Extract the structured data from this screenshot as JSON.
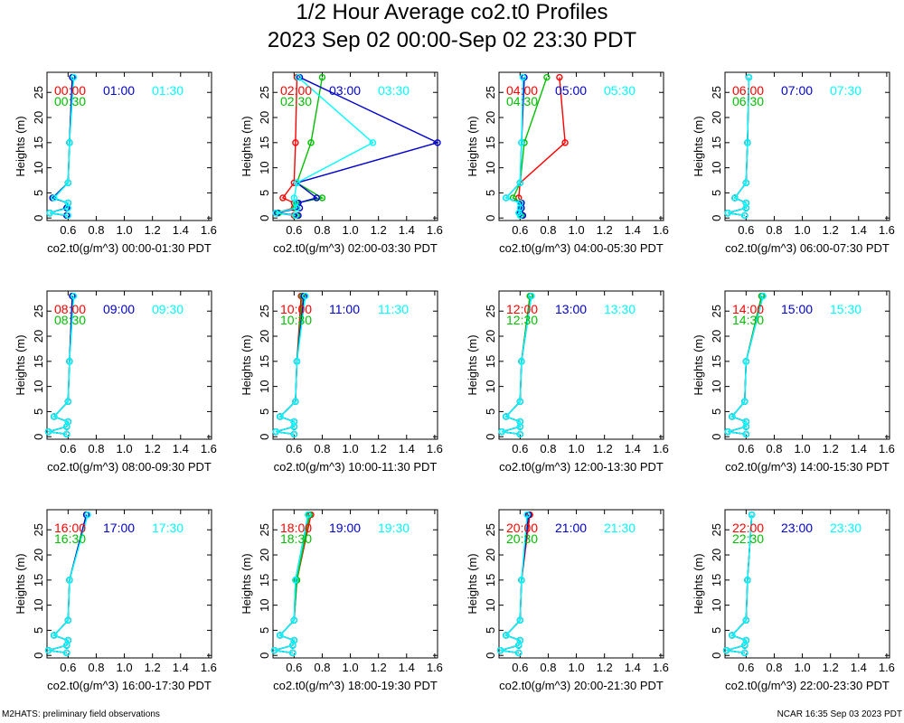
{
  "title": "1/2 Hour Average co2.t0 Profiles",
  "subtitle": "2023 Sep 02 00:00-Sep 02 23:30 PDT",
  "footer_left": "M2HATS: preliminary field observations",
  "footer_right": "NCAR 16:35 Sep 03 2023 PDT",
  "colors": {
    "first": "#ff0000",
    "second": "#00c000",
    "third": "#0000d0",
    "fourth": "#00ffff"
  },
  "chart_data": [
    {
      "type": "line",
      "panel": "00:00-01:30",
      "xlabel": "co2.t0(g/m^3) 00:00-01:30 PDT",
      "ylabel": "Heights (m)",
      "xlim": [
        0.45,
        1.62
      ],
      "ylim": [
        -0.5,
        29
      ],
      "xticks": [
        "0.6",
        "0.8",
        "1.0",
        "1.2",
        "1.4",
        "1.6"
      ],
      "yticks": [
        "0",
        "5",
        "10",
        "15",
        "20",
        "25"
      ],
      "heights": [
        0.5,
        1,
        2,
        3,
        4,
        7,
        15,
        28
      ],
      "series": [
        {
          "name": "00:00",
          "color": "#ff0000",
          "values": [
            0.59,
            0.47,
            0.59,
            0.6,
            0.49,
            0.6,
            0.61,
            0.63
          ]
        },
        {
          "name": "00:30",
          "color": "#00c000",
          "values": [
            0.59,
            0.47,
            0.59,
            0.6,
            0.49,
            0.6,
            0.61,
            0.63
          ]
        },
        {
          "name": "01:00",
          "color": "#0000d0",
          "values": [
            0.59,
            0.47,
            0.59,
            0.6,
            0.49,
            0.6,
            0.61,
            0.63
          ]
        },
        {
          "name": "01:30",
          "color": "#00ffff",
          "values": [
            0.6,
            0.47,
            0.6,
            0.6,
            0.5,
            0.6,
            0.61,
            0.64
          ]
        }
      ]
    },
    {
      "type": "line",
      "panel": "02:00-03:30",
      "xlabel": "co2.t0(g/m^3) 02:00-03:30 PDT",
      "ylabel": "Heights (m)",
      "xlim": [
        0.45,
        1.62
      ],
      "ylim": [
        -0.5,
        29
      ],
      "xticks": [
        "0.6",
        "0.8",
        "1.0",
        "1.2",
        "1.4",
        "1.6"
      ],
      "yticks": [
        "0",
        "5",
        "10",
        "15",
        "20",
        "25"
      ],
      "heights": [
        0.5,
        1,
        2,
        3,
        4,
        7,
        15,
        28
      ],
      "series": [
        {
          "name": "02:00",
          "color": "#ff0000",
          "values": [
            0.6,
            0.47,
            0.6,
            0.6,
            0.52,
            0.6,
            0.61,
            0.62
          ]
        },
        {
          "name": "02:30",
          "color": "#00c000",
          "values": [
            0.62,
            0.49,
            0.61,
            0.62,
            0.8,
            0.62,
            0.72,
            0.8
          ]
        },
        {
          "name": "03:00",
          "color": "#0000d0",
          "values": [
            0.63,
            0.48,
            0.64,
            0.63,
            0.76,
            0.62,
            1.62,
            0.64
          ]
        },
        {
          "name": "03:30",
          "color": "#00ffff",
          "values": [
            0.61,
            0.47,
            0.62,
            0.61,
            0.6,
            0.62,
            1.16,
            0.63
          ]
        }
      ]
    },
    {
      "type": "line",
      "panel": "04:00-05:30",
      "xlabel": "co2.t0(g/m^3) 04:00-05:30 PDT",
      "ylabel": "Heights (m)",
      "xlim": [
        0.45,
        1.62
      ],
      "ylim": [
        -0.5,
        29
      ],
      "xticks": [
        "0.6",
        "0.8",
        "1.0",
        "1.2",
        "1.4",
        "1.6"
      ],
      "yticks": [
        "0",
        "5",
        "10",
        "15",
        "20",
        "25"
      ],
      "heights": [
        0.5,
        1,
        2,
        3,
        4,
        7,
        15,
        28
      ],
      "series": [
        {
          "name": "04:00",
          "color": "#ff0000",
          "values": [
            0.61,
            0.6,
            0.61,
            0.61,
            0.59,
            0.6,
            0.92,
            0.88
          ]
        },
        {
          "name": "04:30",
          "color": "#00c000",
          "values": [
            0.61,
            0.6,
            0.61,
            0.61,
            0.55,
            0.6,
            0.63,
            0.79
          ]
        },
        {
          "name": "05:00",
          "color": "#0000d0",
          "values": [
            0.62,
            0.6,
            0.61,
            0.61,
            0.5,
            0.6,
            0.61,
            0.63
          ]
        },
        {
          "name": "05:30",
          "color": "#00ffff",
          "values": [
            0.6,
            0.59,
            0.6,
            0.6,
            0.5,
            0.6,
            0.61,
            0.62
          ]
        }
      ]
    },
    {
      "type": "line",
      "panel": "06:00-07:30",
      "xlabel": "co2.t0(g/m^3) 06:00-07:30 PDT",
      "ylabel": "Heights (m)",
      "xlim": [
        0.45,
        1.62
      ],
      "ylim": [
        -0.5,
        29
      ],
      "xticks": [
        "0.6",
        "0.8",
        "1.0",
        "1.2",
        "1.4",
        "1.6"
      ],
      "yticks": [
        "0",
        "5",
        "10",
        "15",
        "20",
        "25"
      ],
      "heights": [
        0.5,
        1,
        2,
        3,
        4,
        7,
        15,
        28
      ],
      "series": [
        {
          "name": "06:00",
          "color": "#ff0000",
          "values": [
            0.59,
            0.47,
            0.6,
            0.6,
            0.52,
            0.6,
            0.61,
            0.62
          ]
        },
        {
          "name": "06:30",
          "color": "#00c000",
          "values": [
            0.59,
            0.47,
            0.6,
            0.6,
            0.52,
            0.6,
            0.61,
            0.62
          ]
        },
        {
          "name": "07:00",
          "color": "#0000d0",
          "values": [
            0.59,
            0.47,
            0.6,
            0.6,
            0.52,
            0.6,
            0.61,
            0.62
          ]
        },
        {
          "name": "07:30",
          "color": "#00ffff",
          "values": [
            0.59,
            0.47,
            0.6,
            0.6,
            0.52,
            0.6,
            0.61,
            0.62
          ]
        }
      ]
    },
    {
      "type": "line",
      "panel": "08:00-09:30",
      "xlabel": "co2.t0(g/m^3) 08:00-09:30 PDT",
      "ylabel": "Heights (m)",
      "xlim": [
        0.45,
        1.62
      ],
      "ylim": [
        -0.5,
        29
      ],
      "xticks": [
        "0.6",
        "0.8",
        "1.0",
        "1.2",
        "1.4",
        "1.6"
      ],
      "yticks": [
        "0",
        "5",
        "10",
        "15",
        "20",
        "25"
      ],
      "heights": [
        0.5,
        1,
        2,
        3,
        4,
        7,
        15,
        28
      ],
      "series": [
        {
          "name": "08:00",
          "color": "#ff0000",
          "values": [
            0.59,
            0.46,
            0.59,
            0.6,
            0.5,
            0.6,
            0.61,
            0.63
          ]
        },
        {
          "name": "08:30",
          "color": "#00c000",
          "values": [
            0.59,
            0.46,
            0.59,
            0.6,
            0.5,
            0.6,
            0.61,
            0.63
          ]
        },
        {
          "name": "09:00",
          "color": "#0000d0",
          "values": [
            0.59,
            0.46,
            0.59,
            0.6,
            0.5,
            0.6,
            0.61,
            0.63
          ]
        },
        {
          "name": "09:30",
          "color": "#00ffff",
          "values": [
            0.59,
            0.46,
            0.59,
            0.6,
            0.5,
            0.6,
            0.61,
            0.64
          ]
        }
      ]
    },
    {
      "type": "line",
      "panel": "10:00-11:30",
      "xlabel": "co2.t0(g/m^3) 10:00-11:30 PDT",
      "ylabel": "Heights (m)",
      "xlim": [
        0.45,
        1.62
      ],
      "ylim": [
        -0.5,
        29
      ],
      "xticks": [
        "0.6",
        "0.8",
        "1.0",
        "1.2",
        "1.4",
        "1.6"
      ],
      "yticks": [
        "0",
        "5",
        "10",
        "15",
        "20",
        "25"
      ],
      "heights": [
        0.5,
        1,
        2,
        3,
        4,
        7,
        15,
        28
      ],
      "series": [
        {
          "name": "10:00",
          "color": "#ff0000",
          "values": [
            0.6,
            0.47,
            0.6,
            0.6,
            0.5,
            0.61,
            0.62,
            0.65
          ]
        },
        {
          "name": "10:30",
          "color": "#00c000",
          "values": [
            0.6,
            0.47,
            0.6,
            0.6,
            0.5,
            0.61,
            0.62,
            0.66
          ]
        },
        {
          "name": "11:00",
          "color": "#0000d0",
          "values": [
            0.6,
            0.47,
            0.6,
            0.6,
            0.5,
            0.61,
            0.62,
            0.67
          ]
        },
        {
          "name": "11:30",
          "color": "#00ffff",
          "values": [
            0.6,
            0.47,
            0.6,
            0.6,
            0.5,
            0.61,
            0.62,
            0.68
          ]
        }
      ]
    },
    {
      "type": "line",
      "panel": "12:00-13:30",
      "xlabel": "co2.t0(g/m^3) 12:00-13:30 PDT",
      "ylabel": "Heights (m)",
      "xlim": [
        0.45,
        1.62
      ],
      "ylim": [
        -0.5,
        29
      ],
      "xticks": [
        "0.6",
        "0.8",
        "1.0",
        "1.2",
        "1.4",
        "1.6"
      ],
      "yticks": [
        "0",
        "5",
        "10",
        "15",
        "20",
        "25"
      ],
      "heights": [
        0.5,
        1,
        2,
        3,
        4,
        7,
        15,
        28
      ],
      "series": [
        {
          "name": "12:00",
          "color": "#ff0000",
          "values": [
            0.6,
            0.47,
            0.6,
            0.6,
            0.5,
            0.6,
            0.61,
            0.67
          ]
        },
        {
          "name": "12:30",
          "color": "#00c000",
          "values": [
            0.6,
            0.47,
            0.6,
            0.6,
            0.5,
            0.6,
            0.61,
            0.67
          ]
        },
        {
          "name": "13:00",
          "color": "#0000d0",
          "values": [
            0.6,
            0.47,
            0.6,
            0.6,
            0.5,
            0.6,
            0.61,
            0.68
          ]
        },
        {
          "name": "13:30",
          "color": "#00ffff",
          "values": [
            0.6,
            0.47,
            0.6,
            0.6,
            0.5,
            0.6,
            0.61,
            0.68
          ]
        }
      ]
    },
    {
      "type": "line",
      "panel": "14:00-15:30",
      "xlabel": "co2.t0(g/m^3) 14:00-15:30 PDT",
      "ylabel": "Heights (m)",
      "xlim": [
        0.45,
        1.62
      ],
      "ylim": [
        -0.5,
        29
      ],
      "xticks": [
        "0.6",
        "0.8",
        "1.0",
        "1.2",
        "1.4",
        "1.6"
      ],
      "yticks": [
        "0",
        "5",
        "10",
        "15",
        "20",
        "25"
      ],
      "heights": [
        0.5,
        1,
        2,
        3,
        4,
        7,
        15,
        28
      ],
      "series": [
        {
          "name": "14:00",
          "color": "#ff0000",
          "values": [
            0.6,
            0.47,
            0.6,
            0.6,
            0.5,
            0.59,
            0.6,
            0.71
          ]
        },
        {
          "name": "14:30",
          "color": "#00c000",
          "values": [
            0.6,
            0.47,
            0.6,
            0.6,
            0.5,
            0.59,
            0.6,
            0.71
          ]
        },
        {
          "name": "15:00",
          "color": "#0000d0",
          "values": [
            0.6,
            0.47,
            0.6,
            0.6,
            0.5,
            0.59,
            0.6,
            0.72
          ]
        },
        {
          "name": "15:30",
          "color": "#00ffff",
          "values": [
            0.6,
            0.47,
            0.6,
            0.6,
            0.5,
            0.59,
            0.6,
            0.72
          ]
        }
      ]
    },
    {
      "type": "line",
      "panel": "16:00-17:30",
      "xlabel": "co2.t0(g/m^3) 16:00-17:30 PDT",
      "ylabel": "Heights (m)",
      "xlim": [
        0.45,
        1.62
      ],
      "ylim": [
        -0.5,
        29
      ],
      "xticks": [
        "0.6",
        "0.8",
        "1.0",
        "1.2",
        "1.4",
        "1.6"
      ],
      "yticks": [
        "0",
        "5",
        "10",
        "15",
        "20",
        "25"
      ],
      "heights": [
        0.5,
        1,
        2,
        3,
        4,
        7,
        15,
        28
      ],
      "series": [
        {
          "name": "16:00",
          "color": "#ff0000",
          "values": [
            0.59,
            0.46,
            0.59,
            0.6,
            0.5,
            0.6,
            0.61,
            0.73
          ]
        },
        {
          "name": "16:30",
          "color": "#00c000",
          "values": [
            0.59,
            0.46,
            0.59,
            0.6,
            0.5,
            0.6,
            0.61,
            0.73
          ]
        },
        {
          "name": "17:00",
          "color": "#0000d0",
          "values": [
            0.59,
            0.46,
            0.59,
            0.6,
            0.5,
            0.6,
            0.61,
            0.73
          ]
        },
        {
          "name": "17:30",
          "color": "#00ffff",
          "values": [
            0.59,
            0.46,
            0.59,
            0.6,
            0.5,
            0.6,
            0.61,
            0.74
          ]
        }
      ]
    },
    {
      "type": "line",
      "panel": "18:00-19:30",
      "xlabel": "co2.t0(g/m^3) 18:00-19:30 PDT",
      "ylabel": "Heights (m)",
      "xlim": [
        0.45,
        1.62
      ],
      "ylim": [
        -0.5,
        29
      ],
      "xticks": [
        "0.6",
        "0.8",
        "1.0",
        "1.2",
        "1.4",
        "1.6"
      ],
      "yticks": [
        "0",
        "5",
        "10",
        "15",
        "20",
        "25"
      ],
      "heights": [
        0.5,
        1,
        2,
        3,
        4,
        7,
        15,
        28
      ],
      "series": [
        {
          "name": "18:00",
          "color": "#ff0000",
          "values": [
            0.59,
            0.46,
            0.59,
            0.6,
            0.5,
            0.6,
            0.62,
            0.72
          ]
        },
        {
          "name": "18:30",
          "color": "#00c000",
          "values": [
            0.59,
            0.46,
            0.59,
            0.6,
            0.5,
            0.6,
            0.62,
            0.71
          ]
        },
        {
          "name": "19:00",
          "color": "#0000d0",
          "values": [
            0.59,
            0.46,
            0.59,
            0.6,
            0.5,
            0.6,
            0.61,
            0.7
          ]
        },
        {
          "name": "19:30",
          "color": "#00ffff",
          "values": [
            0.59,
            0.46,
            0.59,
            0.6,
            0.5,
            0.6,
            0.61,
            0.7
          ]
        }
      ]
    },
    {
      "type": "line",
      "panel": "20:00-21:30",
      "xlabel": "co2.t0(g/m^3) 20:00-21:30 PDT",
      "ylabel": "Heights (m)",
      "xlim": [
        0.45,
        1.62
      ],
      "ylim": [
        -0.5,
        29
      ],
      "xticks": [
        "0.6",
        "0.8",
        "1.0",
        "1.2",
        "1.4",
        "1.6"
      ],
      "yticks": [
        "0",
        "5",
        "10",
        "15",
        "20",
        "25"
      ],
      "heights": [
        0.5,
        1,
        2,
        3,
        4,
        7,
        15,
        28
      ],
      "series": [
        {
          "name": "20:00",
          "color": "#ff0000",
          "values": [
            0.59,
            0.46,
            0.59,
            0.6,
            0.5,
            0.6,
            0.61,
            0.67
          ]
        },
        {
          "name": "20:30",
          "color": "#00c000",
          "values": [
            0.59,
            0.46,
            0.59,
            0.6,
            0.5,
            0.6,
            0.61,
            0.66
          ]
        },
        {
          "name": "21:00",
          "color": "#0000d0",
          "values": [
            0.59,
            0.46,
            0.59,
            0.6,
            0.5,
            0.6,
            0.61,
            0.66
          ]
        },
        {
          "name": "21:30",
          "color": "#00ffff",
          "values": [
            0.59,
            0.46,
            0.59,
            0.6,
            0.5,
            0.6,
            0.61,
            0.65
          ]
        }
      ]
    },
    {
      "type": "line",
      "panel": "22:00-23:30",
      "xlabel": "co2.t0(g/m^3) 22:00-23:30 PDT",
      "ylabel": "Heights (m)",
      "xlim": [
        0.45,
        1.62
      ],
      "ylim": [
        -0.5,
        29
      ],
      "xticks": [
        "0.6",
        "0.8",
        "1.0",
        "1.2",
        "1.4",
        "1.6"
      ],
      "yticks": [
        "0",
        "5",
        "10",
        "15",
        "20",
        "25"
      ],
      "heights": [
        0.5,
        1,
        2,
        3,
        4,
        7,
        15,
        28
      ],
      "series": [
        {
          "name": "22:00",
          "color": "#ff0000",
          "values": [
            0.59,
            0.46,
            0.59,
            0.6,
            0.5,
            0.6,
            0.61,
            0.64
          ]
        },
        {
          "name": "22:30",
          "color": "#00c000",
          "values": [
            0.59,
            0.46,
            0.59,
            0.6,
            0.5,
            0.6,
            0.61,
            0.64
          ]
        },
        {
          "name": "23:00",
          "color": "#0000d0",
          "values": [
            0.59,
            0.46,
            0.59,
            0.6,
            0.5,
            0.6,
            0.61,
            0.64
          ]
        },
        {
          "name": "23:30",
          "color": "#00ffff",
          "values": [
            0.59,
            0.46,
            0.59,
            0.6,
            0.5,
            0.6,
            0.61,
            0.64
          ]
        }
      ]
    }
  ]
}
